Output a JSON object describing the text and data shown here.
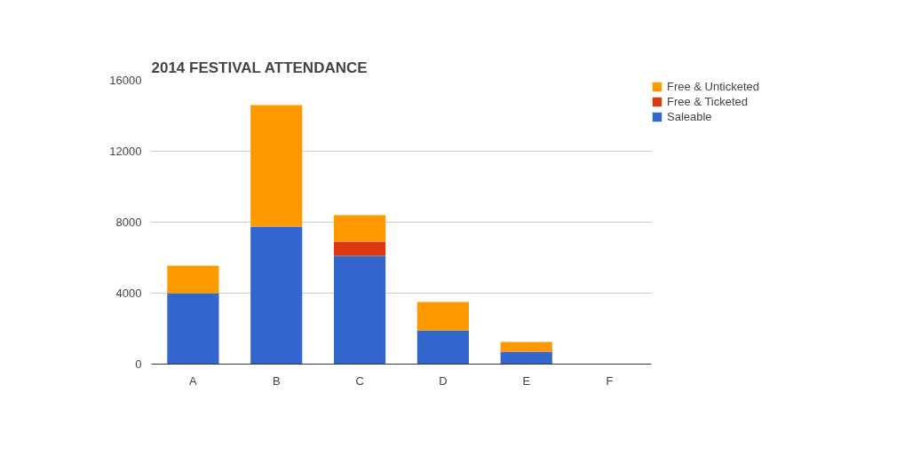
{
  "chart_data": {
    "type": "bar",
    "title": "2014 FESTIVAL ATTENDANCE",
    "categories": [
      "A",
      "B",
      "C",
      "D",
      "E",
      "F"
    ],
    "stacked": true,
    "series": [
      {
        "name": "Saleable",
        "color": "#3366cc",
        "values": [
          4000,
          7750,
          6100,
          1900,
          700,
          0
        ]
      },
      {
        "name": "Free & Ticketed",
        "color": "#dc3912",
        "values": [
          0,
          0,
          800,
          0,
          0,
          0
        ]
      },
      {
        "name": "Free & Unticketed",
        "color": "#ff9900",
        "values": [
          1550,
          6850,
          1500,
          1600,
          550,
          0
        ]
      }
    ],
    "ylim": [
      0,
      16000
    ],
    "yticks": [
      0,
      4000,
      8000,
      12000,
      16000
    ],
    "grid": "y",
    "legend": "right"
  }
}
